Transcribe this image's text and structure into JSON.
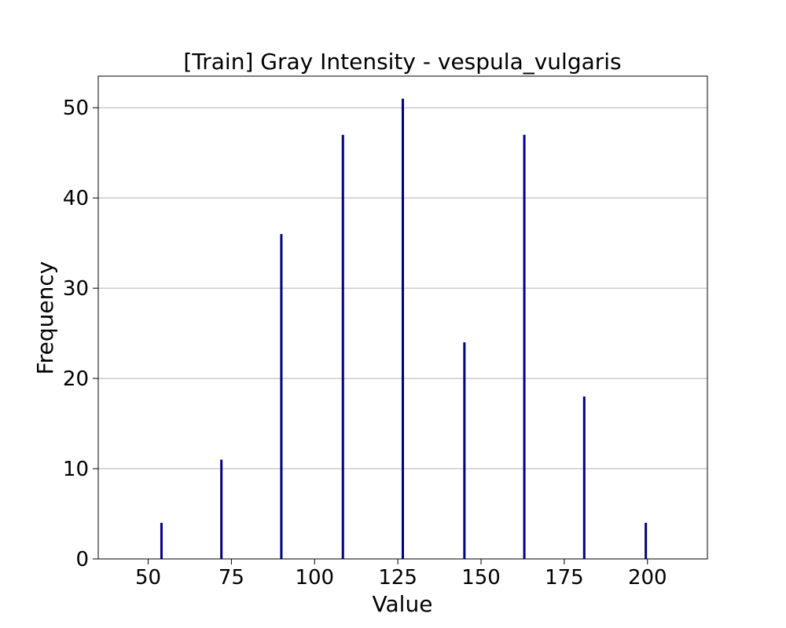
{
  "chart_data": {
    "type": "bar",
    "title": "[Train] Gray Intensity - vespula_vulgaris",
    "xlabel": "Value",
    "ylabel": "Frequency",
    "x": [
      54,
      72,
      90,
      108.5,
      126.5,
      145,
      163,
      181,
      199.5
    ],
    "values": [
      4,
      11,
      36,
      47,
      51,
      24,
      47,
      18,
      4
    ],
    "xlim": [
      35,
      218
    ],
    "ylim": [
      0,
      53.5
    ],
    "xticks": [
      50,
      75,
      100,
      125,
      150,
      175,
      200
    ],
    "yticks": [
      0,
      10,
      20,
      30,
      40,
      50
    ],
    "bar_color": "#00008b",
    "grid": "horizontal"
  }
}
